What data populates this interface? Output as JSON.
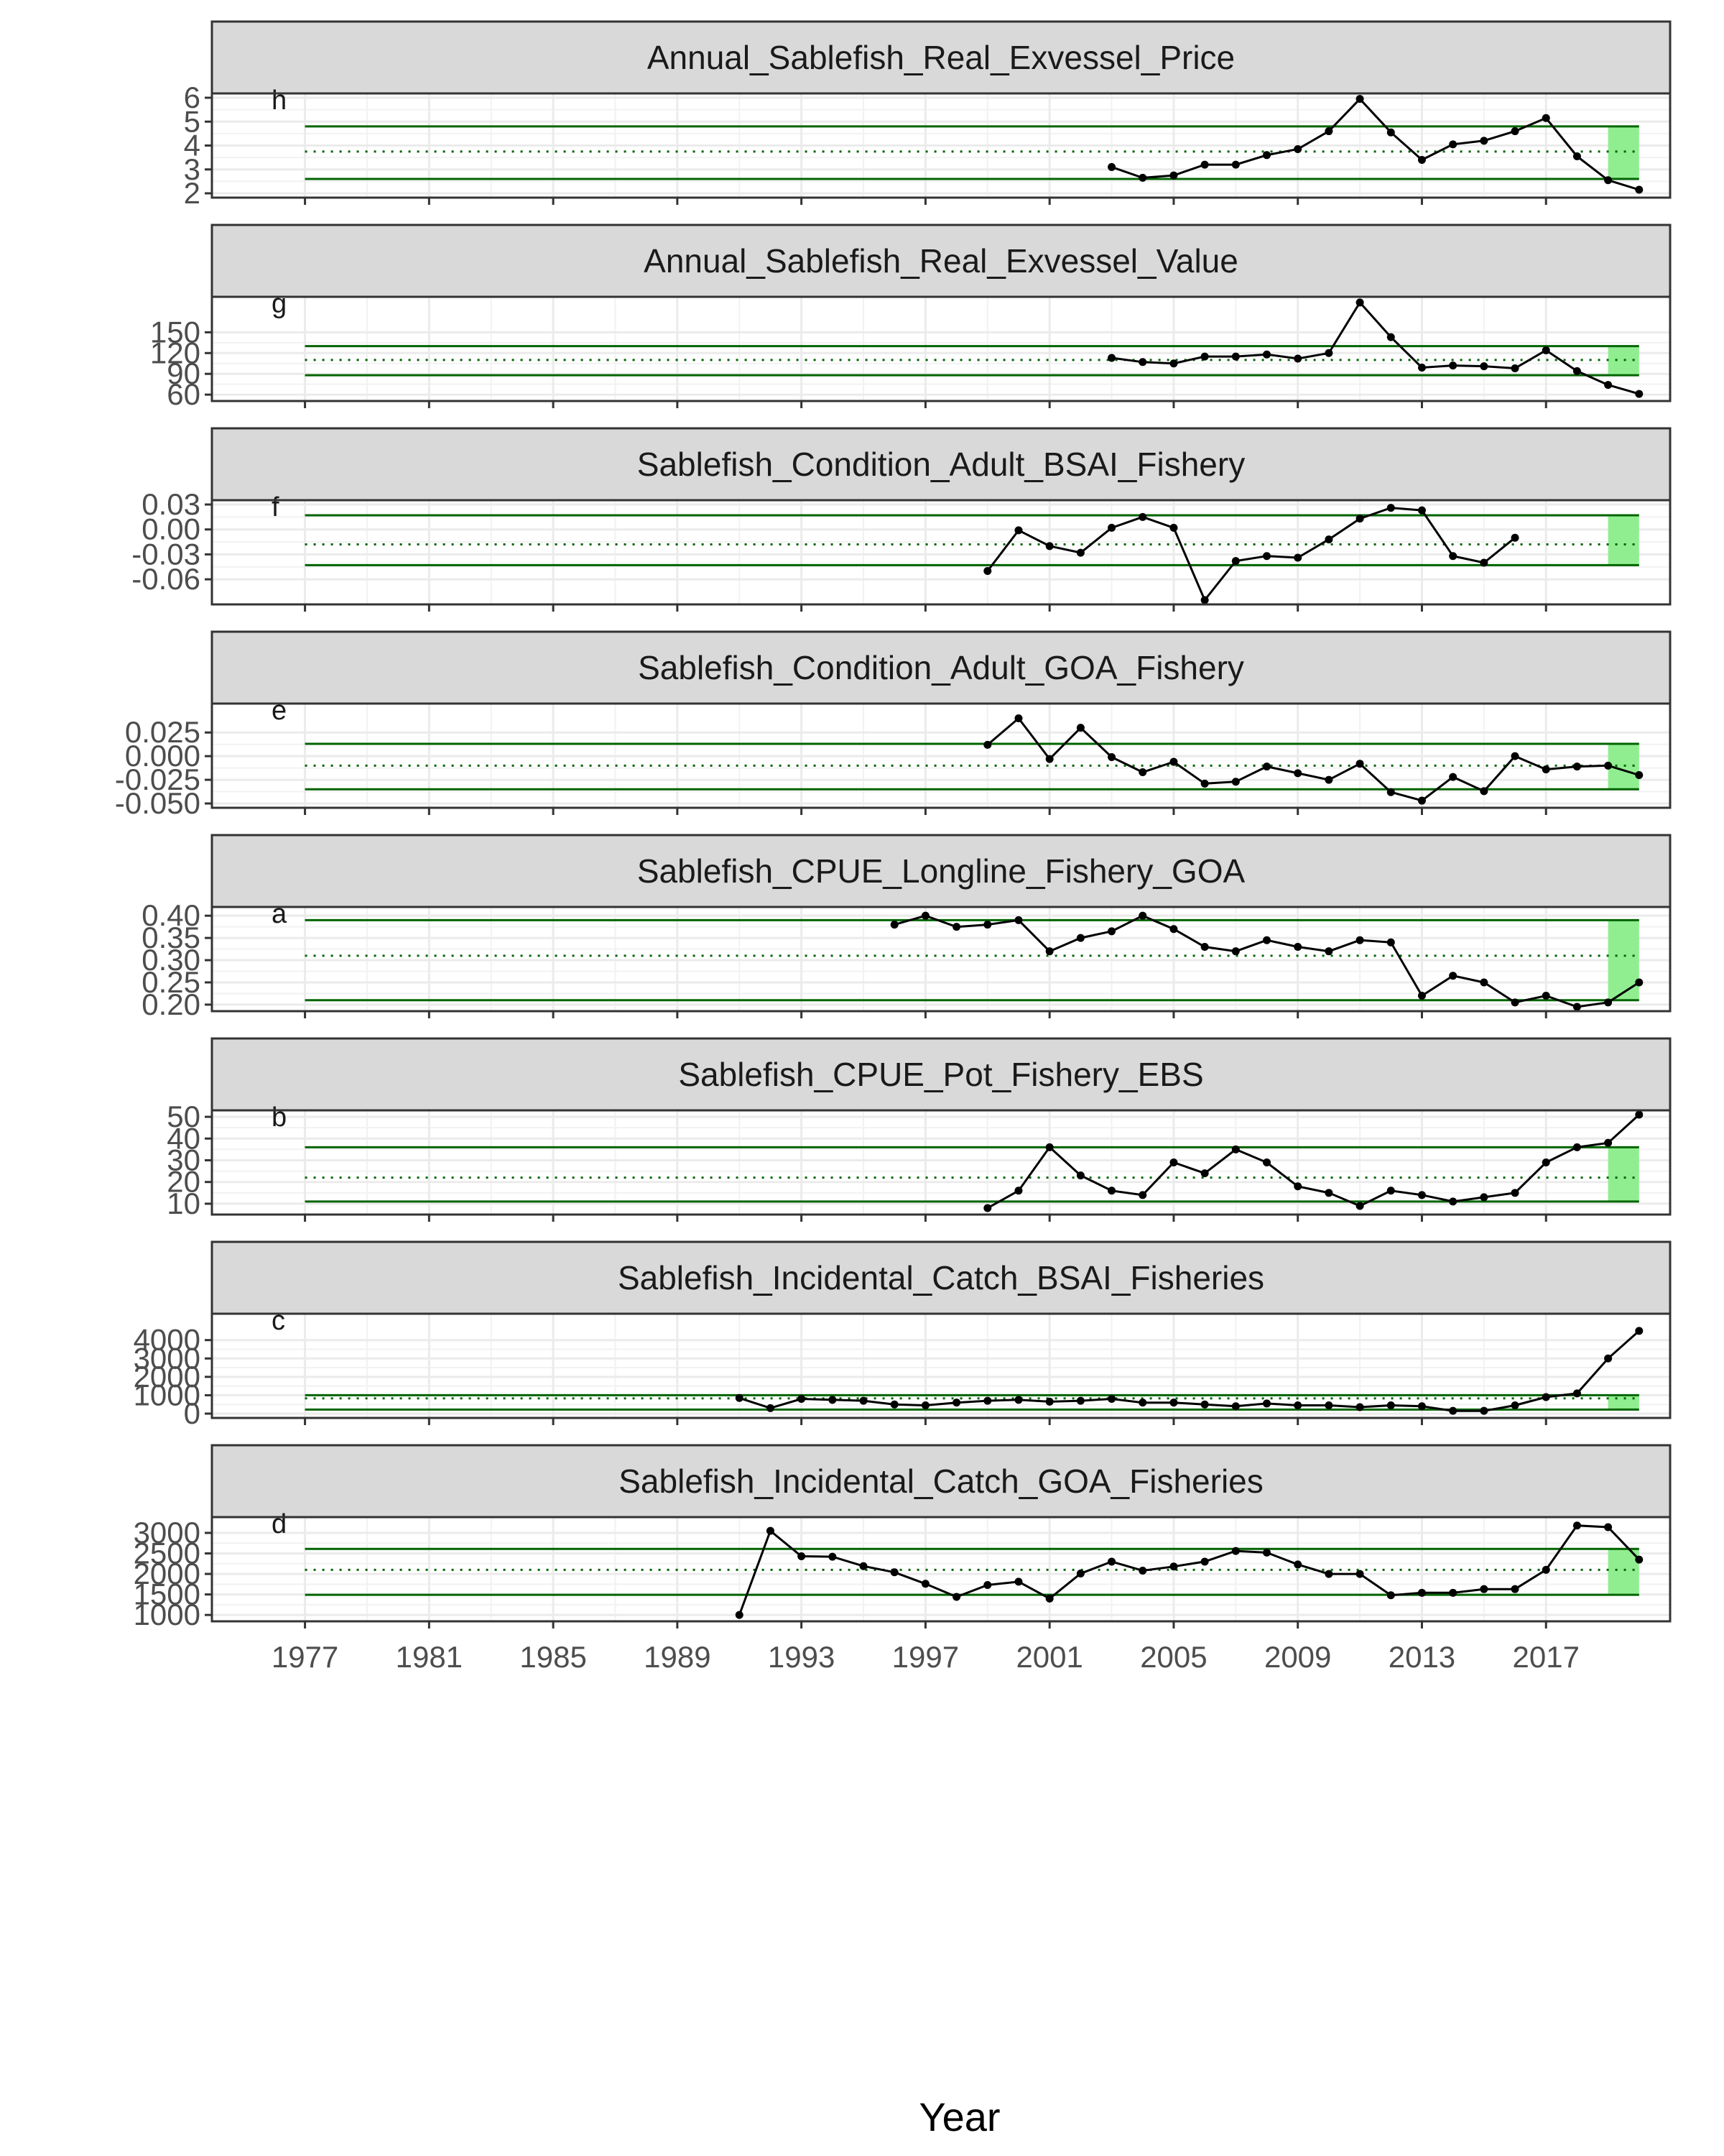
{
  "chart_data": {
    "type": "line",
    "xlabel": "Year",
    "x_ticks": [
      1977,
      1981,
      1985,
      1989,
      1993,
      1997,
      2001,
      2005,
      2009,
      2013,
      2017
    ],
    "xlim": [
      1974,
      2021
    ],
    "highlight_range": [
      2019,
      2020
    ],
    "grid": true,
    "colors": {
      "line": "#000000",
      "band": "#006400",
      "mean": "#006400",
      "highlight": "#90ee90",
      "strip": "#d9d9d9"
    },
    "panels": [
      {
        "title": "Annual_Sablefish_Real_Exvessel_Price",
        "tag": "h",
        "ylim": [
          2,
          6
        ],
        "yticks": [
          2,
          3,
          4,
          5,
          6
        ],
        "ytick_labels": [
          "2",
          "3",
          "4",
          "5",
          "6"
        ],
        "mean": 3.75,
        "upper": 4.8,
        "lower": 2.6,
        "x": [
          2003,
          2004,
          2005,
          2006,
          2007,
          2008,
          2009,
          2010,
          2011,
          2012,
          2013,
          2014,
          2015,
          2016,
          2017,
          2018,
          2019,
          2020
        ],
        "y": [
          3.1,
          2.65,
          2.75,
          3.2,
          3.2,
          3.6,
          3.85,
          4.6,
          5.95,
          4.55,
          3.4,
          4.05,
          4.2,
          4.6,
          5.15,
          3.55,
          2.55,
          2.15
        ]
      },
      {
        "title": "Annual_Sablefish_Real_Exvessel_Value",
        "tag": "g",
        "ylim": [
          57,
          195
        ],
        "yticks": [
          60,
          90,
          120,
          150
        ],
        "ytick_labels": [
          "60",
          "90",
          "120",
          "150"
        ],
        "mean": 110,
        "upper": 130,
        "lower": 88,
        "x": [
          2003,
          2004,
          2005,
          2006,
          2007,
          2008,
          2009,
          2010,
          2011,
          2012,
          2013,
          2014,
          2015,
          2016,
          2017,
          2018,
          2019,
          2020
        ],
        "y": [
          113,
          107,
          105,
          115,
          115,
          118,
          112,
          120,
          193,
          143,
          99,
          102,
          101,
          98,
          124,
          94,
          74,
          61
        ]
      },
      {
        "title": "Sablefish_Condition_Adult_BSAI_Fishery",
        "tag": "f",
        "ylim": [
          -0.085,
          0.03
        ],
        "yticks": [
          -0.06,
          -0.03,
          0.0,
          0.03
        ],
        "ytick_labels": [
          "-0.06",
          "-0.03",
          "0.00",
          "0.03"
        ],
        "mean": -0.018,
        "upper": 0.017,
        "lower": -0.043,
        "x": [
          1999,
          2000,
          2001,
          2002,
          2003,
          2004,
          2005,
          2006,
          2007,
          2008,
          2009,
          2010,
          2011,
          2012,
          2013,
          2014,
          2015,
          2016
        ],
        "y": [
          -0.05,
          -0.001,
          -0.02,
          -0.028,
          0.002,
          0.015,
          0.002,
          -0.085,
          -0.038,
          -0.032,
          -0.034,
          -0.012,
          0.013,
          0.026,
          0.023,
          -0.032,
          -0.04,
          -0.01
        ]
      },
      {
        "title": "Sablefish_Condition_Adult_GOA_Fishery",
        "tag": "e",
        "ylim": [
          -0.05,
          0.051
        ],
        "yticks": [
          -0.05,
          -0.025,
          0.0,
          0.025
        ],
        "ytick_labels": [
          "-0.050",
          "-0.025",
          "0.000",
          "0.025"
        ],
        "mean": -0.01,
        "upper": 0.013,
        "lower": -0.035,
        "x": [
          1999,
          2000,
          2001,
          2002,
          2003,
          2004,
          2005,
          2006,
          2007,
          2008,
          2009,
          2010,
          2011,
          2012,
          2013,
          2014,
          2015,
          2016,
          2017,
          2018,
          2019,
          2020
        ],
        "y": [
          0.012,
          0.04,
          -0.003,
          0.03,
          -0.001,
          -0.017,
          -0.006,
          -0.029,
          -0.027,
          -0.011,
          -0.018,
          -0.025,
          -0.008,
          -0.038,
          -0.047,
          -0.022,
          -0.037,
          0.0,
          -0.014,
          -0.011,
          -0.01,
          -0.02
        ]
      },
      {
        "title": "Sablefish_CPUE_Longline_Fishery_GOA",
        "tag": "a",
        "ylim": [
          0.195,
          0.41
        ],
        "yticks": [
          0.2,
          0.25,
          0.3,
          0.35,
          0.4
        ],
        "ytick_labels": [
          "0.20",
          "0.25",
          "0.30",
          "0.35",
          "0.40"
        ],
        "mean": 0.31,
        "upper": 0.39,
        "lower": 0.21,
        "x": [
          1996,
          1997,
          1998,
          1999,
          2000,
          2001,
          2002,
          2003,
          2004,
          2005,
          2006,
          2007,
          2008,
          2009,
          2010,
          2011,
          2012,
          2013,
          2014,
          2015,
          2016,
          2017,
          2018,
          2019,
          2020
        ],
        "y": [
          0.38,
          0.4,
          0.375,
          0.38,
          0.39,
          0.32,
          0.35,
          0.365,
          0.4,
          0.37,
          0.33,
          0.32,
          0.345,
          0.33,
          0.32,
          0.345,
          0.34,
          0.22,
          0.265,
          0.25,
          0.205,
          0.22,
          0.195,
          0.205,
          0.25
        ]
      },
      {
        "title": "Sablefish_CPUE_Pot_Fishery_EBS",
        "tag": "b",
        "ylim": [
          7,
          51
        ],
        "yticks": [
          10,
          20,
          30,
          40,
          50
        ],
        "ytick_labels": [
          "10",
          "20",
          "30",
          "40",
          "50"
        ],
        "mean": 22,
        "upper": 36,
        "lower": 11,
        "x": [
          1999,
          2000,
          2001,
          2002,
          2003,
          2004,
          2005,
          2006,
          2007,
          2008,
          2009,
          2010,
          2011,
          2012,
          2013,
          2014,
          2015,
          2016,
          2017,
          2018,
          2019,
          2020
        ],
        "y": [
          8,
          16,
          36,
          23,
          16,
          14,
          29,
          24,
          35,
          29,
          18,
          15,
          9,
          16,
          14,
          11,
          13,
          15,
          29,
          36,
          38,
          51
        ]
      },
      {
        "title": "Sablefish_Incidental_Catch_BSAI_Fisheries",
        "tag": "c",
        "ylim": [
          0,
          5200
        ],
        "yticks": [
          0,
          1000,
          2000,
          3000,
          4000
        ],
        "ytick_labels": [
          "0",
          "1000",
          "2000",
          "3000",
          "4000"
        ],
        "mean": 830,
        "upper": 1000,
        "lower": 220,
        "x": [
          1991,
          1992,
          1993,
          1994,
          1995,
          1996,
          1997,
          1998,
          1999,
          2000,
          2001,
          2002,
          2003,
          2004,
          2005,
          2006,
          2007,
          2008,
          2009,
          2010,
          2011,
          2012,
          2013,
          2014,
          2015,
          2016,
          2017,
          2018,
          2019,
          2020
        ],
        "y": [
          850,
          300,
          800,
          750,
          700,
          500,
          450,
          600,
          700,
          750,
          650,
          700,
          800,
          600,
          600,
          500,
          400,
          550,
          450,
          450,
          350,
          450,
          400,
          150,
          150,
          450,
          900,
          1100,
          3000,
          4500
        ]
      },
      {
        "title": "Sablefish_Incidental_Catch_GOA_Fisheries",
        "tag": "d",
        "ylim": [
          950,
          3280
        ],
        "yticks": [
          1000,
          1500,
          2000,
          2500,
          3000
        ],
        "ytick_labels": [
          "1000",
          "1500",
          "2000",
          "2500",
          "3000"
        ],
        "mean": 2100,
        "upper": 2610,
        "lower": 1490,
        "x": [
          1991,
          1992,
          1993,
          1994,
          1995,
          1996,
          1997,
          1998,
          1999,
          2000,
          2001,
          2002,
          2003,
          2004,
          2005,
          2006,
          2007,
          2008,
          2009,
          2010,
          2011,
          2012,
          2013,
          2014,
          2015,
          2016,
          2017,
          2018,
          2019,
          2020
        ],
        "y": [
          1000,
          3050,
          2430,
          2420,
          2190,
          2040,
          1760,
          1440,
          1730,
          1810,
          1400,
          2010,
          2300,
          2080,
          2180,
          2300,
          2560,
          2520,
          2230,
          2000,
          2000,
          1480,
          1540,
          1540,
          1630,
          1630,
          2100,
          3180,
          3140,
          2350
        ]
      }
    ]
  }
}
